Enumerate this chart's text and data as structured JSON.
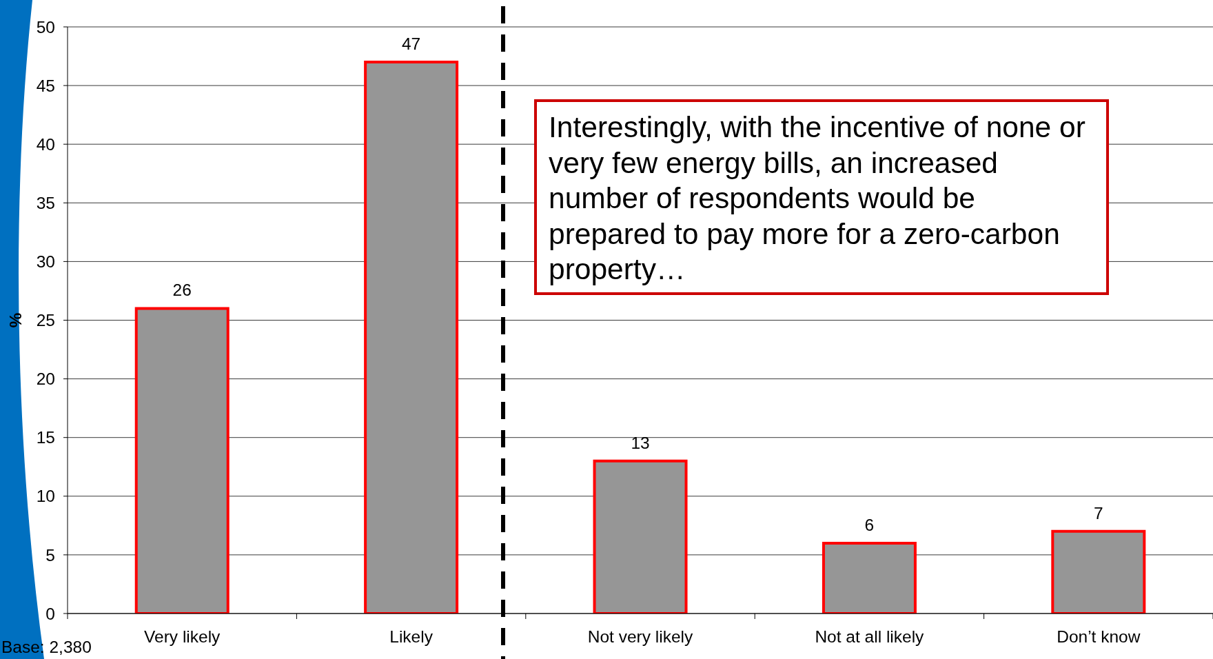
{
  "chart_data": {
    "type": "bar",
    "categories": [
      "Very likely",
      "Likely",
      "Not very likely",
      "Not at all likely",
      "Don’t know"
    ],
    "values": [
      26,
      47,
      13,
      6,
      7
    ],
    "color": "#969696",
    "ylabel": "%",
    "ylim": [
      0,
      50
    ],
    "yticks": [
      0,
      5,
      10,
      15,
      20,
      25,
      30,
      35,
      40,
      45,
      50
    ],
    "grid": "y",
    "data_labels": true,
    "annotations": [
      "Interestingly, with the incentive of none or very few energy bills, an increased number of respondents would be prepared to pay more for a zero-carbon property…",
      "Base: 2,380"
    ]
  }
}
